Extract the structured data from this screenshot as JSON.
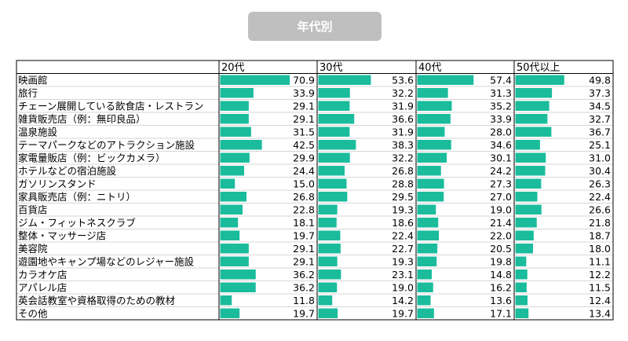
{
  "title": "年代別",
  "colors": {
    "bar": "#1abc9c",
    "border": "#000000",
    "row_divider": "#c8c8c8"
  },
  "chart_data": {
    "type": "bar",
    "title": "年代別",
    "columns": [
      "20代",
      "30代",
      "40代",
      "50代以上"
    ],
    "categories": [
      "映画館",
      "旅行",
      "チェーン展開している飲食店・レストラン",
      "雑貨販売店（例：無印良品）",
      "温泉施設",
      "テーマパークなどのアトラクション施設",
      "家電量販店（例：ビックカメラ）",
      "ホテルなどの宿泊施設",
      "ガソリンスタンド",
      "家具販売店（例：ニトリ）",
      "百貨店",
      "ジム・フィットネスクラブ",
      "整体・マッサージ店",
      "美容院",
      "遊園地やキャンプ場などのレジャー施設",
      "カラオケ店",
      "アパレル店",
      "英会話教室や資格取得のための教材",
      "その他"
    ],
    "series": [
      {
        "name": "20代",
        "values": [
          70.9,
          33.9,
          29.1,
          29.1,
          31.5,
          42.5,
          29.9,
          24.4,
          15.0,
          26.8,
          22.8,
          18.1,
          19.7,
          29.1,
          29.1,
          36.2,
          36.2,
          11.8,
          19.7
        ]
      },
      {
        "name": "30代",
        "values": [
          53.6,
          32.2,
          31.9,
          36.6,
          31.9,
          38.3,
          32.2,
          26.8,
          28.8,
          29.5,
          19.3,
          18.6,
          22.4,
          22.7,
          19.3,
          23.1,
          19.0,
          14.2,
          19.7
        ]
      },
      {
        "name": "40代",
        "values": [
          57.4,
          31.3,
          35.2,
          33.9,
          28.0,
          34.6,
          30.1,
          24.2,
          27.3,
          27.0,
          19.0,
          21.4,
          22.0,
          20.5,
          19.8,
          14.8,
          16.2,
          13.6,
          17.1
        ]
      },
      {
        "name": "50代以上",
        "values": [
          49.8,
          37.3,
          34.5,
          32.7,
          36.7,
          25.1,
          31.0,
          30.4,
          26.3,
          22.4,
          26.6,
          21.8,
          18.7,
          18.0,
          11.1,
          12.2,
          11.5,
          12.4,
          13.4
        ]
      }
    ]
  }
}
